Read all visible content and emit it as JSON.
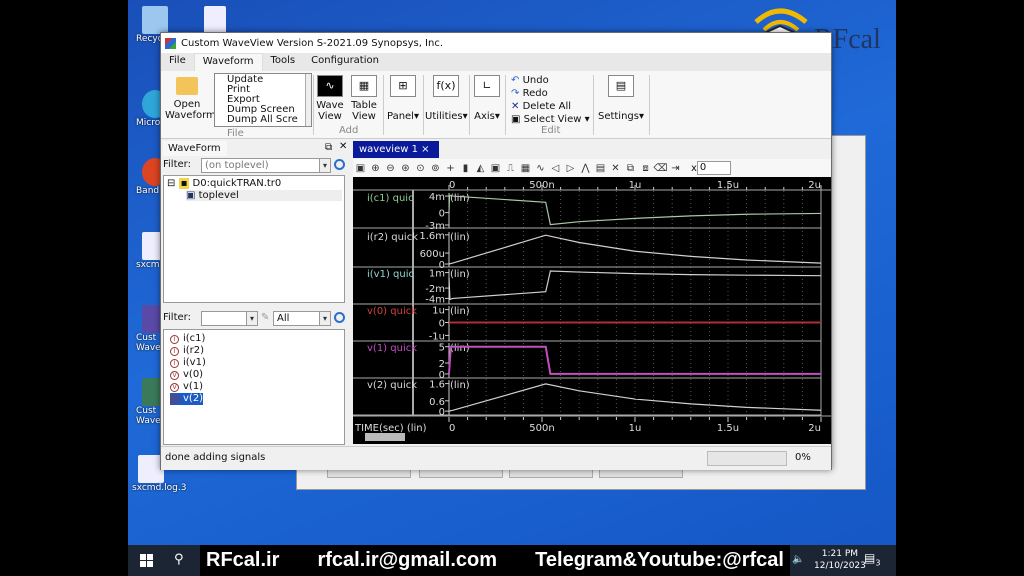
{
  "desktop": {
    "icons": [
      "Recyc",
      "Micro Ed",
      "Band",
      "sxcmd",
      "Cust Wave",
      "Cust Wave",
      "sxcmd.log.3"
    ]
  },
  "window": {
    "title": "Custom WaveView Version S-2021.09  Synopsys, Inc."
  },
  "menu": [
    "File",
    "Waveform",
    "Tools",
    "Configuration"
  ],
  "ribbon": {
    "open": "Open Waveform",
    "file_items": [
      "Update",
      "Print",
      "Export",
      "Dump Screen",
      "Dump All Scre"
    ],
    "file_group": "File",
    "wave_view": "Wave View",
    "table_view": "Table View",
    "add_group": "Add",
    "panel": "Panel",
    "utilities": "Utilities",
    "axis": "Axis",
    "edit_items": [
      "Undo",
      "Redo",
      "Delete All",
      "Select View"
    ],
    "edit_group": "Edit",
    "settings": "Settings"
  },
  "left_panel": {
    "title": "WaveForm",
    "filter_label": "Filter:",
    "filter_value": "(on toplevel)",
    "tree": {
      "root": "D0:quickTRAN.tr0",
      "child": "toplevel"
    },
    "filter2_value": "",
    "filter2_type": "All",
    "signals": [
      {
        "name": "i(c1)",
        "kind": "current"
      },
      {
        "name": "i(r2)",
        "kind": "current"
      },
      {
        "name": "i(v1)",
        "kind": "current"
      },
      {
        "name": "v(0)",
        "kind": "voltage"
      },
      {
        "name": "v(1)",
        "kind": "voltage"
      },
      {
        "name": "v(2)",
        "kind": "voltage",
        "selected": true
      }
    ]
  },
  "waveview": {
    "tab": "waveview 1",
    "close": "×",
    "x_field": "0",
    "x_label": "x",
    "toolbar_icons": [
      "fit-icon",
      "zoom-in-icon",
      "zoom-out-icon",
      "zoom-area-icon",
      "zoom-x-icon",
      "zoom-y-icon",
      "cursor-icon",
      "marker-icon",
      "measure-icon",
      "annotate-icon",
      "pulse-icon",
      "grid-icon",
      "wave-icon",
      "prev-icon",
      "next-icon",
      "edge-icon",
      "stack-icon",
      "delete-icon",
      "group-icon",
      "ungroup-icon",
      "eraser-icon",
      "export-icon"
    ]
  },
  "chart_data": {
    "type": "line",
    "xlabel": "TIME(sec) (lin)",
    "x_unit": "s",
    "xlim": [
      0,
      2e-06
    ],
    "x_ticks": [
      {
        "v": 0,
        "label": "0"
      },
      {
        "v": 5e-07,
        "label": "500n"
      },
      {
        "v": 1e-06,
        "label": "1u"
      },
      {
        "v": 1.5e-06,
        "label": "1.5u"
      },
      {
        "v": 2e-06,
        "label": "2u"
      }
    ],
    "grid": true,
    "panels": [
      {
        "name": "i(c1) quic",
        "scale": "(lin)",
        "color": "#8fcf8f",
        "trace": "#a8c8a8",
        "ylim": [
          -0.003,
          0.0045
        ],
        "ticks": [
          {
            "v": 0.004,
            "label": "4m"
          },
          {
            "v": 0,
            "label": "0"
          },
          {
            "v": -0.003,
            "label": "-3m"
          }
        ],
        "points": [
          [
            0,
            0
          ],
          [
            3e-09,
            0.0042
          ],
          [
            2e-08,
            0.004
          ],
          [
            5.2e-07,
            0.0025
          ],
          [
            5.45e-07,
            -0.0029
          ],
          [
            7e-07,
            -0.0022
          ],
          [
            1e-06,
            -0.0014
          ],
          [
            1.3e-06,
            -0.0008
          ],
          [
            1.6e-06,
            -0.0004
          ],
          [
            2e-06,
            -0.0002
          ]
        ]
      },
      {
        "name": "i(r2) quick",
        "scale": "(lin)",
        "color": "#d8d8d8",
        "trace": "#d0d0d0",
        "ylim": [
          0,
          0.0017
        ],
        "ticks": [
          {
            "v": 0.0016,
            "label": "1.6m"
          },
          {
            "v": 0.0006,
            "label": "600u"
          },
          {
            "v": 0,
            "label": "0"
          }
        ],
        "points": [
          [
            0,
            0
          ],
          [
            2e-08,
            5e-05
          ],
          [
            5.2e-07,
            0.00158
          ],
          [
            7e-07,
            0.00118
          ],
          [
            1e-06,
            0.0007
          ],
          [
            1.3e-06,
            0.00042
          ],
          [
            1.6e-06,
            0.00022
          ],
          [
            2e-06,
            5e-05
          ]
        ]
      },
      {
        "name": "i(v1) quic",
        "scale": "(lin)",
        "color": "#8fd8d8",
        "trace": "#d0d0d0",
        "ylim": [
          -0.0045,
          0.0015
        ],
        "ticks": [
          {
            "v": 0.001,
            "label": "1m"
          },
          {
            "v": -0.002,
            "label": "-2m"
          },
          {
            "v": -0.004,
            "label": "-4m"
          }
        ],
        "points": [
          [
            0,
            0
          ],
          [
            5e-09,
            -0.0042
          ],
          [
            2e-08,
            -0.004
          ],
          [
            5.2e-07,
            -0.0027
          ],
          [
            5.45e-07,
            0.0013
          ],
          [
            7e-07,
            0.0011
          ],
          [
            1e-06,
            0.0008
          ],
          [
            1.3e-06,
            0.0006
          ],
          [
            1.6e-06,
            0.0005
          ],
          [
            2e-06,
            0.0004
          ]
        ]
      },
      {
        "name": "v(0) quick",
        "scale": "(lin)",
        "color": "#d04040",
        "trace": "#b03030",
        "ylim": [
          -1.2e-06,
          1.2e-06
        ],
        "ticks": [
          {
            "v": 1e-06,
            "label": "1u"
          },
          {
            "v": 0,
            "label": "0"
          },
          {
            "v": -1e-06,
            "label": "-1u"
          }
        ],
        "points": [
          [
            0,
            0
          ],
          [
            2e-06,
            0
          ]
        ]
      },
      {
        "name": "v(1) quick",
        "scale": "(lin)",
        "color": "#c050c0",
        "trace": "#c050c0",
        "ylim": [
          -0.2,
          5.5
        ],
        "ticks": [
          {
            "v": 5,
            "label": "5"
          },
          {
            "v": 2,
            "label": "2"
          },
          {
            "v": 0,
            "label": "0"
          }
        ],
        "points": [
          [
            0,
            0
          ],
          [
            1e-08,
            5
          ],
          [
            5.2e-07,
            5
          ],
          [
            5.45e-07,
            0
          ],
          [
            2e-06,
            0
          ]
        ]
      },
      {
        "name": "v(2) quick",
        "scale": "(lin)",
        "color": "#d8d8d8",
        "trace": "#d0d0d0",
        "ylim": [
          -0.05,
          1.75
        ],
        "ticks": [
          {
            "v": 1.6,
            "label": "1.6"
          },
          {
            "v": 0.6,
            "label": "0.6"
          },
          {
            "v": 0,
            "label": "0"
          }
        ],
        "points": [
          [
            0,
            0
          ],
          [
            2e-08,
            0.05
          ],
          [
            5.2e-07,
            1.58
          ],
          [
            7e-07,
            1.18
          ],
          [
            1e-06,
            0.7
          ],
          [
            1.3e-06,
            0.42
          ],
          [
            1.6e-06,
            0.22
          ],
          [
            2e-06,
            0.05
          ]
        ]
      }
    ]
  },
  "status": {
    "message": "done adding signals",
    "progress_percent": 0,
    "progress_label": "0%"
  },
  "taskbar": {
    "banner": [
      "RFcal.ir",
      "rfcal.ir@gmail.com",
      "Telegram&Youtube:@rfcal"
    ],
    "time": "1:21 PM",
    "date": "12/10/2023",
    "notifications": "3"
  },
  "logo": {
    "text": "RFcal"
  }
}
